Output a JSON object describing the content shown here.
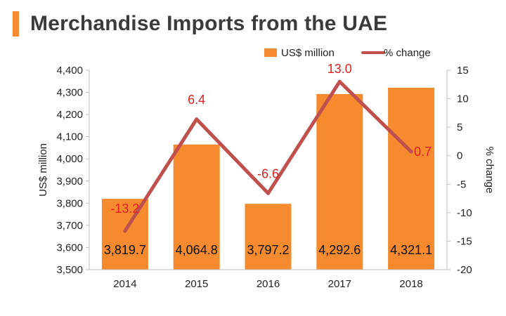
{
  "title": "Merchandise Imports from the UAE",
  "colors": {
    "accent": "#f58a2e",
    "bar": "#f58a2e",
    "line": "#c0504d",
    "line_label": "#e02020"
  },
  "chart_data": {
    "type": "bar",
    "title": "Merchandise Imports from the UAE",
    "categories": [
      "2014",
      "2015",
      "2016",
      "2017",
      "2018"
    ],
    "series": [
      {
        "name": "US$ million",
        "type": "bar",
        "axis": "left",
        "values": [
          3819.7,
          4064.8,
          3797.2,
          4292.6,
          4321.1
        ],
        "labels": [
          "3,819.7",
          "4,064.8",
          "3,797.2",
          "4,292.6",
          "4,321.1"
        ]
      },
      {
        "name": "% change",
        "type": "line",
        "axis": "right",
        "values": [
          -13.2,
          6.4,
          -6.6,
          13.0,
          0.7
        ],
        "labels": [
          "-13.2",
          "6.4",
          "-6.6",
          "13.0",
          "0.7"
        ]
      }
    ],
    "ylabel": "US$ million",
    "y2label": "% change",
    "ylim": [
      3500,
      4400
    ],
    "y2lim": [
      -20,
      15
    ],
    "yticks": [
      "3,500",
      "3,600",
      "3,700",
      "3,800",
      "3,900",
      "4,000",
      "4,100",
      "4,200",
      "4,300",
      "4,400"
    ],
    "y2ticks": [
      "-20",
      "-15",
      "-10",
      "-5",
      "0",
      "5",
      "10",
      "15"
    ],
    "legend": "top-right",
    "grid": false
  }
}
